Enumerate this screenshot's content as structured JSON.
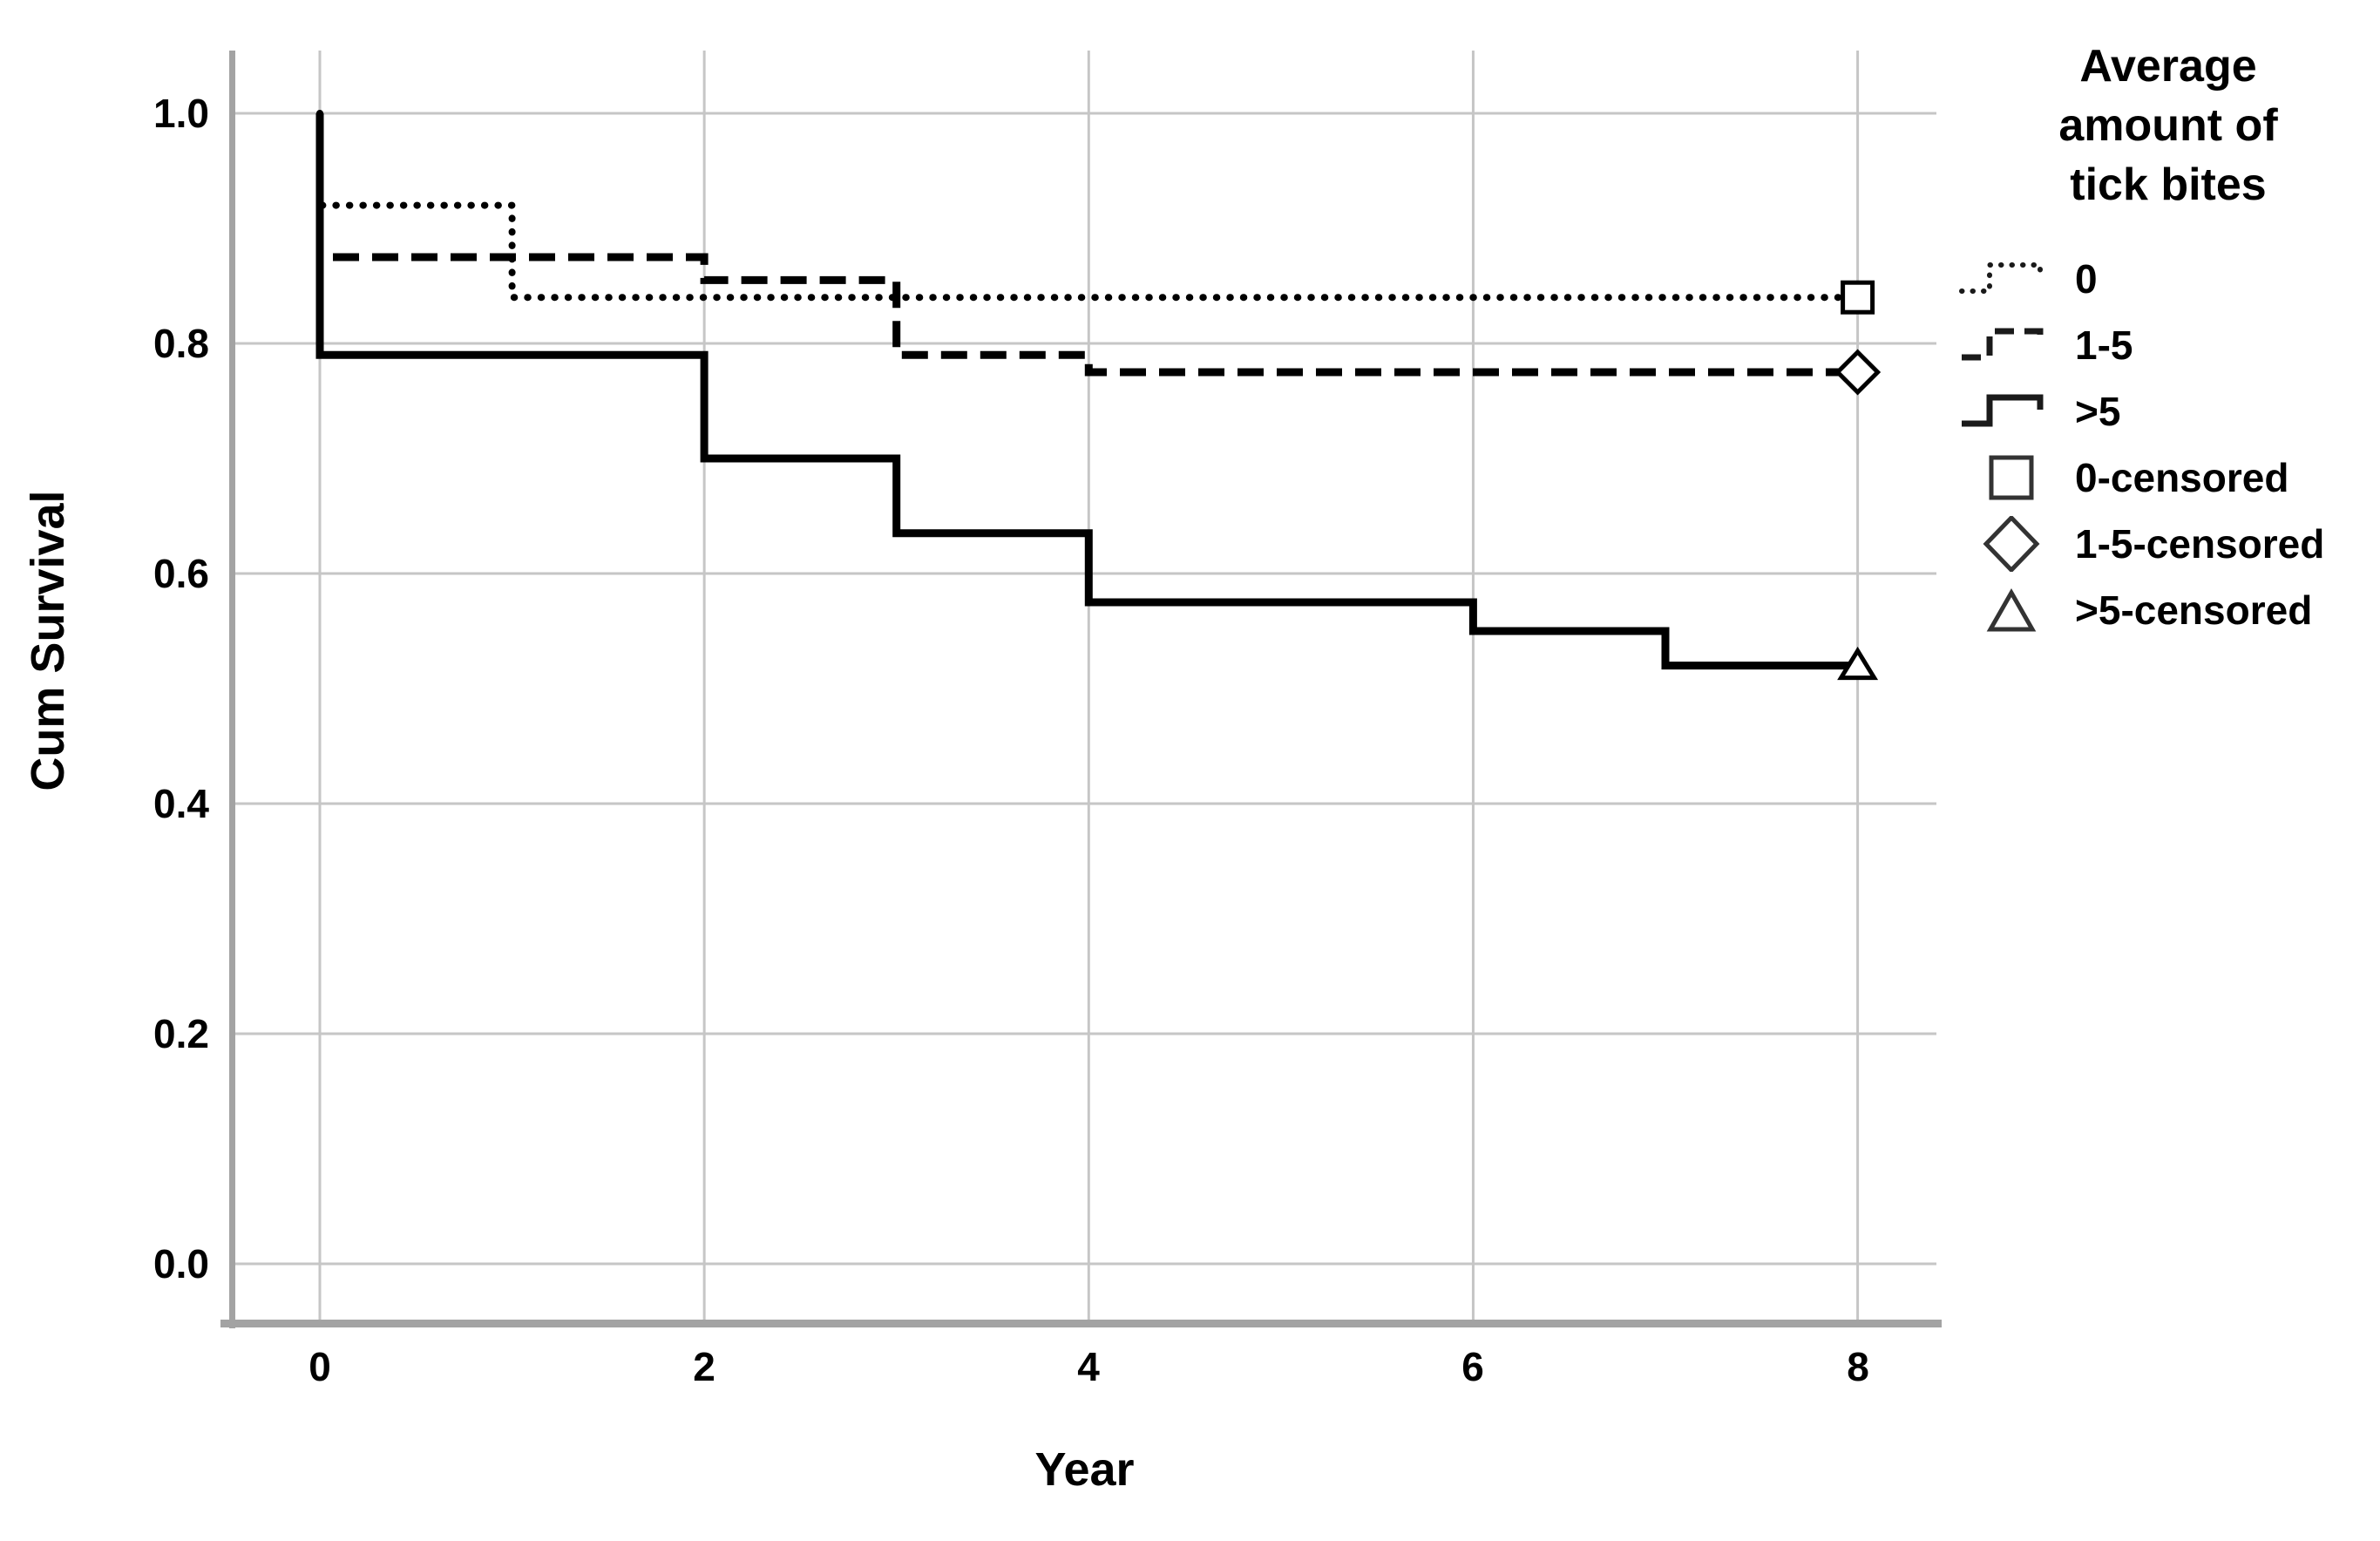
{
  "chart_data": {
    "type": "line",
    "subtype": "kaplan-meier-step",
    "title": "",
    "xlabel": "Year",
    "ylabel": "Cum Survival",
    "xlim": [
      -0.45,
      8.41
    ],
    "ylim": [
      -0.05,
      1.055
    ],
    "x_ticks": [
      0,
      2,
      4,
      6,
      8
    ],
    "y_ticks": [
      1.0,
      0.8,
      0.6,
      0.4,
      0.2,
      0.0
    ],
    "grid": true,
    "legend_position": "right",
    "legend_title": "Average amount of tick bites",
    "series": [
      {
        "name": "0",
        "style": "dotted",
        "censor_marker": "square",
        "points": [
          [
            0,
            1.0
          ],
          [
            0,
            0.92
          ],
          [
            1,
            0.92
          ],
          [
            1,
            0.84
          ],
          [
            8,
            0.84
          ]
        ],
        "censored": [
          [
            8,
            0.84
          ]
        ]
      },
      {
        "name": "1-5",
        "style": "dashed",
        "censor_marker": "diamond",
        "points": [
          [
            0,
            1.0
          ],
          [
            0,
            0.875
          ],
          [
            2,
            0.875
          ],
          [
            2,
            0.855
          ],
          [
            3,
            0.855
          ],
          [
            3,
            0.79
          ],
          [
            4,
            0.79
          ],
          [
            4,
            0.775
          ],
          [
            8,
            0.775
          ]
        ],
        "censored": [
          [
            8,
            0.775
          ]
        ]
      },
      {
        "name": ">5",
        "style": "solid",
        "censor_marker": "triangle",
        "points": [
          [
            0,
            1.0
          ],
          [
            0,
            0.79
          ],
          [
            2,
            0.79
          ],
          [
            2,
            0.7
          ],
          [
            3,
            0.7
          ],
          [
            3,
            0.635
          ],
          [
            4,
            0.635
          ],
          [
            4,
            0.575
          ],
          [
            6,
            0.575
          ],
          [
            6,
            0.55
          ],
          [
            7,
            0.55
          ],
          [
            7,
            0.52
          ],
          [
            8,
            0.52
          ]
        ],
        "censored": [
          [
            8,
            0.52
          ]
        ]
      }
    ]
  },
  "axes": {
    "x_title": "Year",
    "y_title": "Cum Survival",
    "x_tick_labels": [
      "0",
      "2",
      "4",
      "6",
      "8"
    ],
    "y_tick_labels": [
      "1.0",
      "0.8",
      "0.6",
      "0.4",
      "0.2",
      "0.0"
    ]
  },
  "legend": {
    "title": "Average amount of tick bites",
    "items": [
      {
        "label": "0",
        "sample": "dotted-step-line"
      },
      {
        "label": "1-5",
        "sample": "dashed-step-line"
      },
      {
        "label": ">5",
        "sample": "solid-step-line"
      },
      {
        "label": "0-censored",
        "sample": "open-square"
      },
      {
        "label": "1-5-censored",
        "sample": "open-diamond"
      },
      {
        "label": ">5-censored",
        "sample": "open-triangle"
      }
    ]
  },
  "colors": {
    "curve": "#000000",
    "grid": "#c6c6c6",
    "axis": "#a3a3a3",
    "background": "#ffffff"
  }
}
